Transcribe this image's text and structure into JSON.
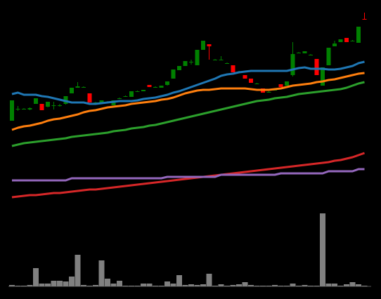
{
  "chart_data": [
    {
      "type": "candlestick",
      "up_color": "#008000",
      "down_color": "#ff0000",
      "ylim": [
        0,
        280
      ],
      "open": [
        118,
        135,
        135,
        134,
        142,
        142,
        138,
        140,
        140,
        142,
        157,
        165,
        166,
        157,
        144,
        143,
        145,
        140,
        150,
        153,
        152,
        160,
        160,
        169,
        166,
        165,
        169,
        178,
        190,
        196,
        202,
        197,
        219,
        227,
        205,
        205,
        200,
        197,
        188,
        183,
        178,
        171,
        164,
        159,
        162,
        170,
        168,
        183,
        215,
        214,
        212,
        206,
        168,
        197,
        224,
        230,
        236,
        232,
        229,
        263
      ],
      "high": [
        147,
        139,
        136,
        137,
        150,
        142,
        145,
        145,
        142,
        153,
        165,
        173,
        167,
        157,
        145,
        147,
        146,
        147,
        151,
        154,
        160,
        161,
        162,
        169,
        167,
        168,
        174,
        191,
        196,
        203,
        205,
        219,
        232,
        227,
        206,
        210,
        201,
        197,
        189,
        183,
        178,
        172,
        164,
        160,
        163,
        170,
        174,
        230,
        216,
        217,
        213,
        206,
        194,
        222,
        232,
        234,
        236,
        233,
        252,
        272
      ],
      "low": [
        118,
        132,
        134,
        133,
        142,
        133,
        137,
        134,
        138,
        141,
        157,
        165,
        165,
        144,
        143,
        143,
        144,
        140,
        149,
        152,
        152,
        159,
        160,
        166,
        165,
        165,
        168,
        178,
        190,
        196,
        198,
        197,
        219,
        205,
        204,
        204,
        199,
        187,
        187,
        178,
        172,
        170,
        158,
        158,
        161,
        166,
        168,
        181,
        214,
        214,
        211,
        183,
        168,
        197,
        224,
        230,
        230,
        231,
        229,
        262
      ],
      "close": [
        147,
        135,
        135,
        136,
        150,
        133,
        145,
        140,
        140,
        153,
        165,
        167,
        166,
        144,
        144,
        147,
        145,
        147,
        150,
        153,
        160,
        160,
        162,
        166,
        166,
        168,
        174,
        191,
        196,
        203,
        202,
        219,
        232,
        224,
        205,
        205,
        200,
        187,
        188,
        178,
        172,
        171,
        158,
        159,
        162,
        166,
        174,
        213,
        215,
        217,
        212,
        183,
        194,
        222,
        228,
        234,
        230,
        232,
        252,
        262
      ],
      "series": [
        {
          "color": "#1f77b4",
          "values": [
            156,
            158,
            155,
            155,
            155,
            153,
            152,
            150,
            148,
            146,
            144,
            144,
            144,
            142,
            142,
            143,
            144,
            145,
            146,
            146,
            146,
            147,
            149,
            150,
            151,
            153,
            155,
            158,
            160,
            163,
            166,
            169,
            172,
            175,
            178,
            182,
            184,
            185,
            187,
            188,
            189,
            189,
            189,
            189,
            189,
            189,
            189,
            191,
            193,
            194,
            192,
            192,
            192,
            191,
            191,
            192,
            194,
            196,
            200,
            202
          ]
        },
        {
          "color": "#ff7f0e",
          "values": [
            105,
            108,
            110,
            111,
            113,
            115,
            118,
            120,
            121,
            123,
            125,
            127,
            130,
            132,
            133,
            135,
            137,
            138,
            139,
            140,
            142,
            143,
            144,
            145,
            146,
            148,
            149,
            151,
            154,
            157,
            159,
            161,
            162,
            162,
            163,
            164,
            164,
            164,
            164,
            164,
            163,
            162,
            162,
            162,
            163,
            164,
            166,
            168,
            169,
            170,
            171,
            173,
            174,
            176,
            177,
            179,
            181,
            183,
            185,
            186
          ]
        },
        {
          "color": "#2ca02c",
          "values": [
            82,
            84,
            86,
            87,
            88,
            89,
            90,
            91,
            92,
            93,
            95,
            96,
            97,
            98,
            99,
            100,
            101,
            103,
            104,
            105,
            107,
            108,
            109,
            111,
            112,
            114,
            116,
            118,
            120,
            122,
            124,
            126,
            128,
            130,
            132,
            134,
            136,
            138,
            140,
            142,
            144,
            146,
            147,
            148,
            150,
            151,
            152,
            154,
            156,
            157,
            158,
            159,
            160,
            161,
            162,
            163,
            165,
            168,
            171,
            173
          ]
        },
        {
          "color": "#d62728",
          "values": [
            9,
            10,
            11,
            12,
            12,
            13,
            14,
            15,
            15,
            16,
            17,
            18,
            19,
            20,
            20,
            21,
            22,
            23,
            24,
            25,
            26,
            27,
            28,
            29,
            30,
            31,
            32,
            33,
            34,
            35,
            36,
            37,
            38,
            39,
            40,
            41,
            42,
            43,
            44,
            45,
            46,
            47,
            48,
            49,
            50,
            51,
            52,
            53,
            54,
            55,
            56,
            57,
            58,
            59,
            61,
            62,
            64,
            66,
            69,
            72
          ]
        },
        {
          "color": "#9467bd",
          "values": [
            33,
            33,
            33,
            33,
            33,
            33,
            33,
            33,
            33,
            33,
            36,
            36,
            36,
            36,
            36,
            36,
            36,
            36,
            36,
            36,
            36,
            36,
            36,
            36,
            36,
            36,
            38,
            38,
            38,
            38,
            38,
            38,
            38,
            38,
            38,
            41,
            41,
            41,
            41,
            41,
            41,
            41,
            41,
            41,
            41,
            43,
            43,
            43,
            43,
            43,
            43,
            43,
            43,
            46,
            46,
            46,
            46,
            46,
            49,
            49
          ]
        }
      ]
    },
    {
      "type": "bar",
      "color": "#808080",
      "ylim": [
        0,
        104
      ],
      "values": [
        2,
        1,
        1,
        2,
        26,
        4,
        4,
        8,
        8,
        7,
        14,
        45,
        2,
        1,
        2,
        37,
        11,
        4,
        8,
        1,
        1,
        1,
        4,
        4,
        1,
        1,
        7,
        4,
        16,
        2,
        3,
        2,
        3,
        18,
        1,
        3,
        1,
        2,
        3,
        6,
        2,
        1,
        1,
        1,
        2,
        1,
        1,
        4,
        1,
        2,
        1,
        1,
        104,
        4,
        4,
        1,
        3,
        6,
        3,
        1
      ]
    }
  ]
}
